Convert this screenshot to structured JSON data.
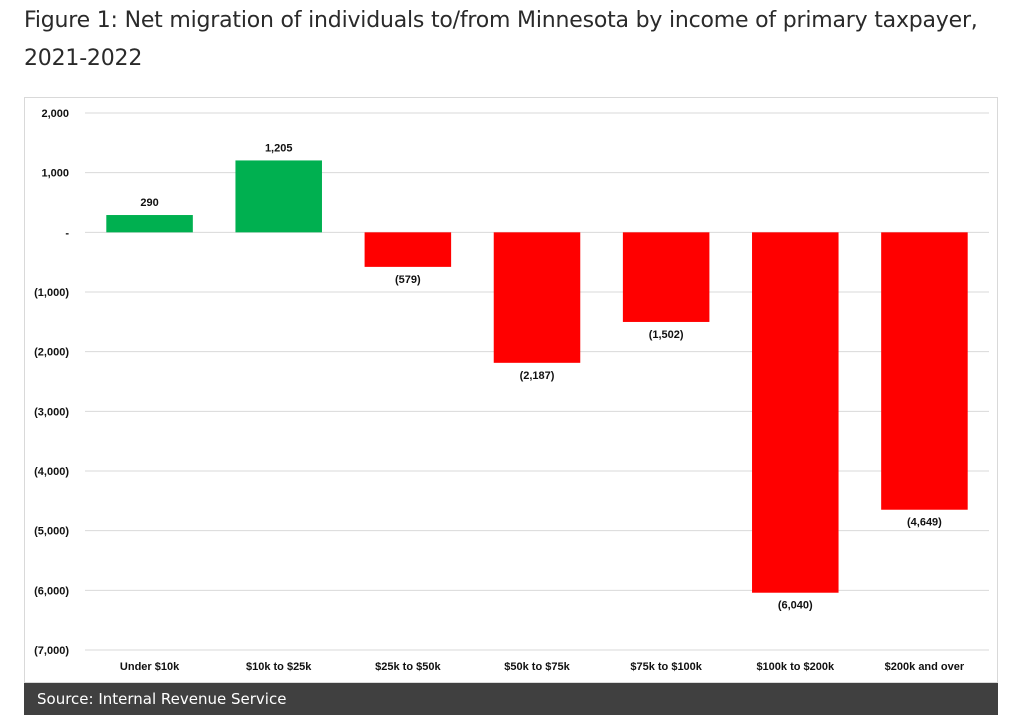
{
  "figure": {
    "title": "Figure 1: Net migration of individuals to/from Minnesota by income of primary taxpayer, 2021-2022",
    "source": "Source: Internal Revenue Service"
  },
  "colors": {
    "positive": "#00b050",
    "negative": "#ff0000",
    "grid": "#d9d9d9",
    "source_bar": "#404040"
  },
  "chart_data": {
    "type": "bar",
    "title": "Figure 1: Net migration of individuals to/from Minnesota by income of primary taxpayer, 2021-2022",
    "xlabel": "",
    "ylabel": "",
    "categories": [
      "Under $10k",
      "$10k to $25k",
      "$25k to $50k",
      "$50k to $75k",
      "$75k to $100k",
      "$100k to $200k",
      "$200k and over"
    ],
    "values": [
      290,
      1205,
      -579,
      -2187,
      -1502,
      -6040,
      -4649
    ],
    "data_labels": [
      "290",
      "1,205",
      "(579)",
      "(2,187)",
      "(1,502)",
      "(6,040)",
      "(4,649)"
    ],
    "ylim": [
      -7000,
      2000
    ],
    "yticks": [
      2000,
      1000,
      0,
      -1000,
      -2000,
      -3000,
      -4000,
      -5000,
      -6000,
      -7000
    ],
    "ytick_labels": [
      "2,000",
      "1,000",
      "-",
      "(1,000)",
      "(2,000)",
      "(3,000)",
      "(4,000)",
      "(5,000)",
      "(6,000)",
      "(7,000)"
    ],
    "grid": true,
    "legend": "none"
  }
}
